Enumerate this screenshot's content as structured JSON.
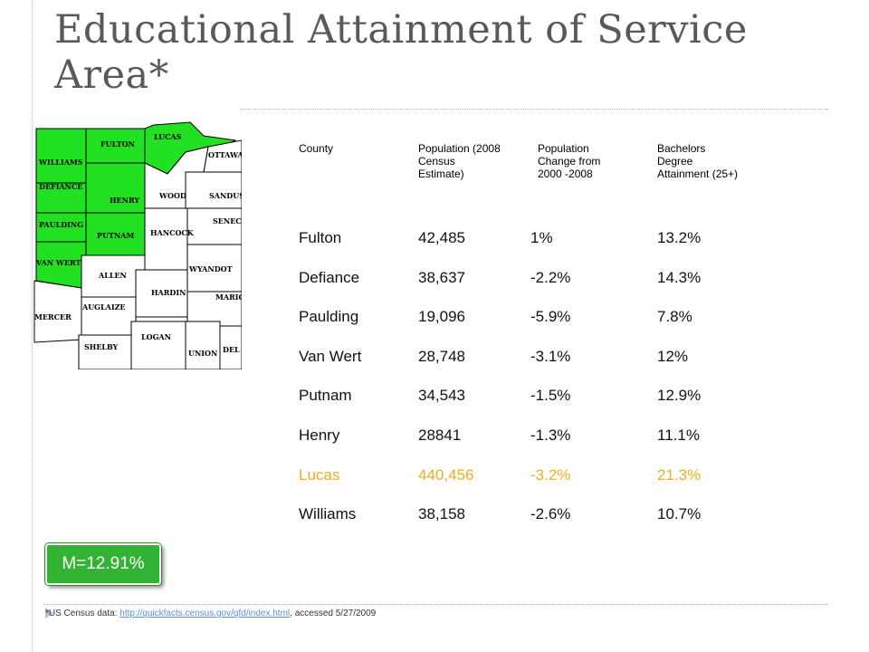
{
  "title": "Educational Attainment of Service Area*",
  "map": {
    "labels": [
      "WILLIAMS",
      "FULTON",
      "LUCAS",
      "OTTAWA",
      "DEFIANCE",
      "HENRY",
      "WOOD",
      "SANDUS",
      "SENEC",
      "PAULDING",
      "PUTNAM",
      "HANCOCK",
      "VAN WERT",
      "ALLEN",
      "WYANDOT",
      "MERCER",
      "AUGLAIZE",
      "HARDIN",
      "MARIO",
      "SHELBY",
      "LOGAN",
      "UNION",
      "DEL"
    ],
    "highlight_color": "#22e022"
  },
  "table": {
    "headers": [
      "County",
      "Population (2008\nCensus\nEstimate)",
      "Population\nChange from\n2000 -2008",
      "Bachelors\nDegree\nAttainment (25+)"
    ],
    "rows": [
      {
        "county": "Fulton",
        "population": "42,485",
        "change": "1%",
        "bachelors": "13.2%"
      },
      {
        "county": "Defiance",
        "population": "38,637",
        "change": "-2.2%",
        "bachelors": "14.3%"
      },
      {
        "county": "Paulding",
        "population": "19,096",
        "change": "-5.9%",
        "bachelors": "7.8%"
      },
      {
        "county": "Van Wert",
        "population": "28,748",
        "change": "-3.1%",
        "bachelors": "12%"
      },
      {
        "county": "Putnam",
        "population": "34,543",
        "change": "-1.5%",
        "bachelors": "12.9%"
      },
      {
        "county": "Henry",
        "population": "28841",
        "change": "-1.3%",
        "bachelors": "11.1%"
      },
      {
        "county": "Lucas",
        "population": "440,456",
        "change": "-3.2%",
        "bachelors": "21.3%"
      },
      {
        "county": "Williams",
        "population": "38,158",
        "change": "-2.6%",
        "bachelors": "10.7%"
      }
    ],
    "highlight_color": "#f0ad1e"
  },
  "badge": "M=12.91%",
  "footnote": {
    "prefix": "*US Census data: ",
    "link": "http://quickfacts.census.gov/qfd/index.html",
    "suffix": ", accessed 5/27/2009"
  }
}
